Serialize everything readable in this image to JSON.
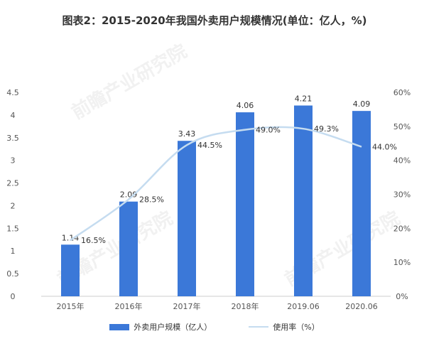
{
  "chart_data": {
    "type": "bar",
    "title": "图表2：2015-2020年我国外卖用户规模情况(单位：亿人，%)",
    "categories": [
      "2015年",
      "2016年",
      "2017年",
      "2018年",
      "2019.06",
      "2020.06"
    ],
    "series": [
      {
        "name": "外卖用户规模（亿人）",
        "type": "bar",
        "axis": "left",
        "values": [
          1.14,
          2.09,
          3.43,
          4.06,
          4.21,
          4.09
        ],
        "color": "#3b78d8"
      },
      {
        "name": "使用率（%）",
        "type": "line",
        "axis": "right",
        "values": [
          16.5,
          28.5,
          44.5,
          49.0,
          49.3,
          44.0
        ],
        "labels": [
          "16.5%",
          "28.5%",
          "44.5%",
          "49.0%",
          "49.3%",
          "44.0%"
        ],
        "color": "#c5dcf0"
      }
    ],
    "y_left": {
      "min": 0,
      "max": 4.5,
      "ticks": [
        "0",
        "0.5",
        "1",
        "1.5",
        "2",
        "2.5",
        "3",
        "3.5",
        "4",
        "4.5"
      ]
    },
    "y_right": {
      "min": 0,
      "max": 60,
      "ticks": [
        "0%",
        "10%",
        "20%",
        "30%",
        "40%",
        "50%",
        "60%"
      ]
    },
    "bar_labels": [
      "1.14",
      "2.09",
      "3.43",
      "4.06",
      "4.21",
      "4.09"
    ],
    "grid": false,
    "legend": "bottom"
  },
  "watermark_text": "前瞻产业研究院"
}
